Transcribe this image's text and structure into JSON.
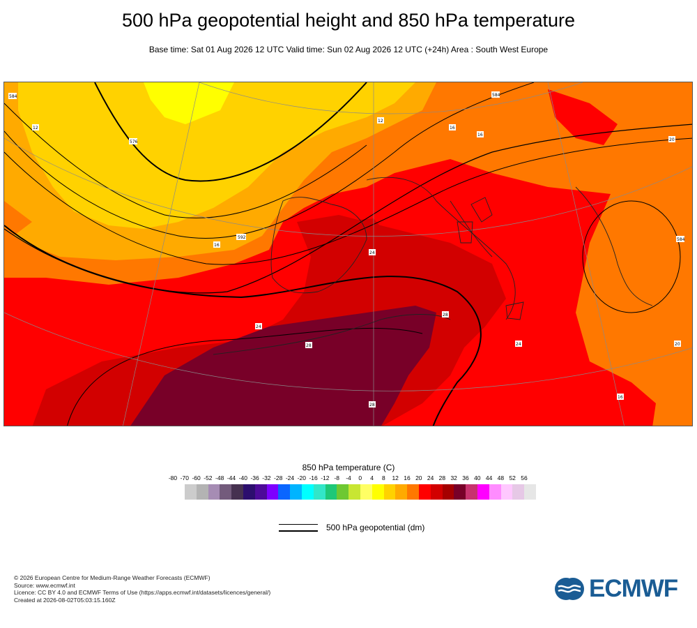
{
  "header": {
    "title": "500 hPa geopotential height and 850 hPa temperature",
    "subtitle": "Base time: Sat 01 Aug 2026 12 UTC Valid time: Sun 02 Aug 2026 12 UTC (+24h) Area : South West Europe"
  },
  "map": {
    "region": "South West Europe",
    "contour_labels": [
      "584",
      "576",
      "584",
      "592",
      "584",
      "12",
      "12",
      "16",
      "16",
      "16",
      "20",
      "24",
      "24",
      "28",
      "28",
      "28",
      "24",
      "16",
      "20",
      "584",
      "592",
      "20",
      "28"
    ]
  },
  "legend": {
    "temperature_title": "850 hPa temperature (C)",
    "tick_labels": [
      "-80",
      "-70",
      "-60",
      "-52",
      "-48",
      "-44",
      "-40",
      "-36",
      "-32",
      "-28",
      "-24",
      "-20",
      "-16",
      "-12",
      "-8",
      "-4",
      "0",
      "4",
      "8",
      "12",
      "16",
      "20",
      "24",
      "28",
      "32",
      "36",
      "40",
      "44",
      "48",
      "52",
      "56"
    ],
    "colors": [
      "#e6e6e6",
      "#cccccc",
      "#b3b3b3",
      "#a68cb4",
      "#735b7c",
      "#463150",
      "#2c0e6e",
      "#4d0a99",
      "#7d00ff",
      "#0a66ff",
      "#00b4ff",
      "#00ffff",
      "#32e6c8",
      "#1ec878",
      "#6ec832",
      "#c8e632",
      "#ffff64",
      "#ffff00",
      "#ffd200",
      "#ffaa00",
      "#ff7800",
      "#ff0000",
      "#d20000",
      "#a50000",
      "#780028",
      "#c8326e",
      "#ff00ff",
      "#ff8cff",
      "#ffc8ff",
      "#e6c8e6",
      "#e6e6e6"
    ],
    "geopotential_label": "500 hPa geopotential (dm)"
  },
  "footer": {
    "copyright": "© 2026 European Centre for Medium-Range Weather Forecasts (ECMWF)",
    "source": "Source: www.ecmwf.int",
    "licence": "Licence: CC BY 4.0 and ECMWF Terms of Use (https://apps.ecmwf.int/datasets/licences/general/)",
    "created": "Created at 2026-08-02T05:03:15.160Z"
  },
  "logo": {
    "text": "ECMWF"
  }
}
